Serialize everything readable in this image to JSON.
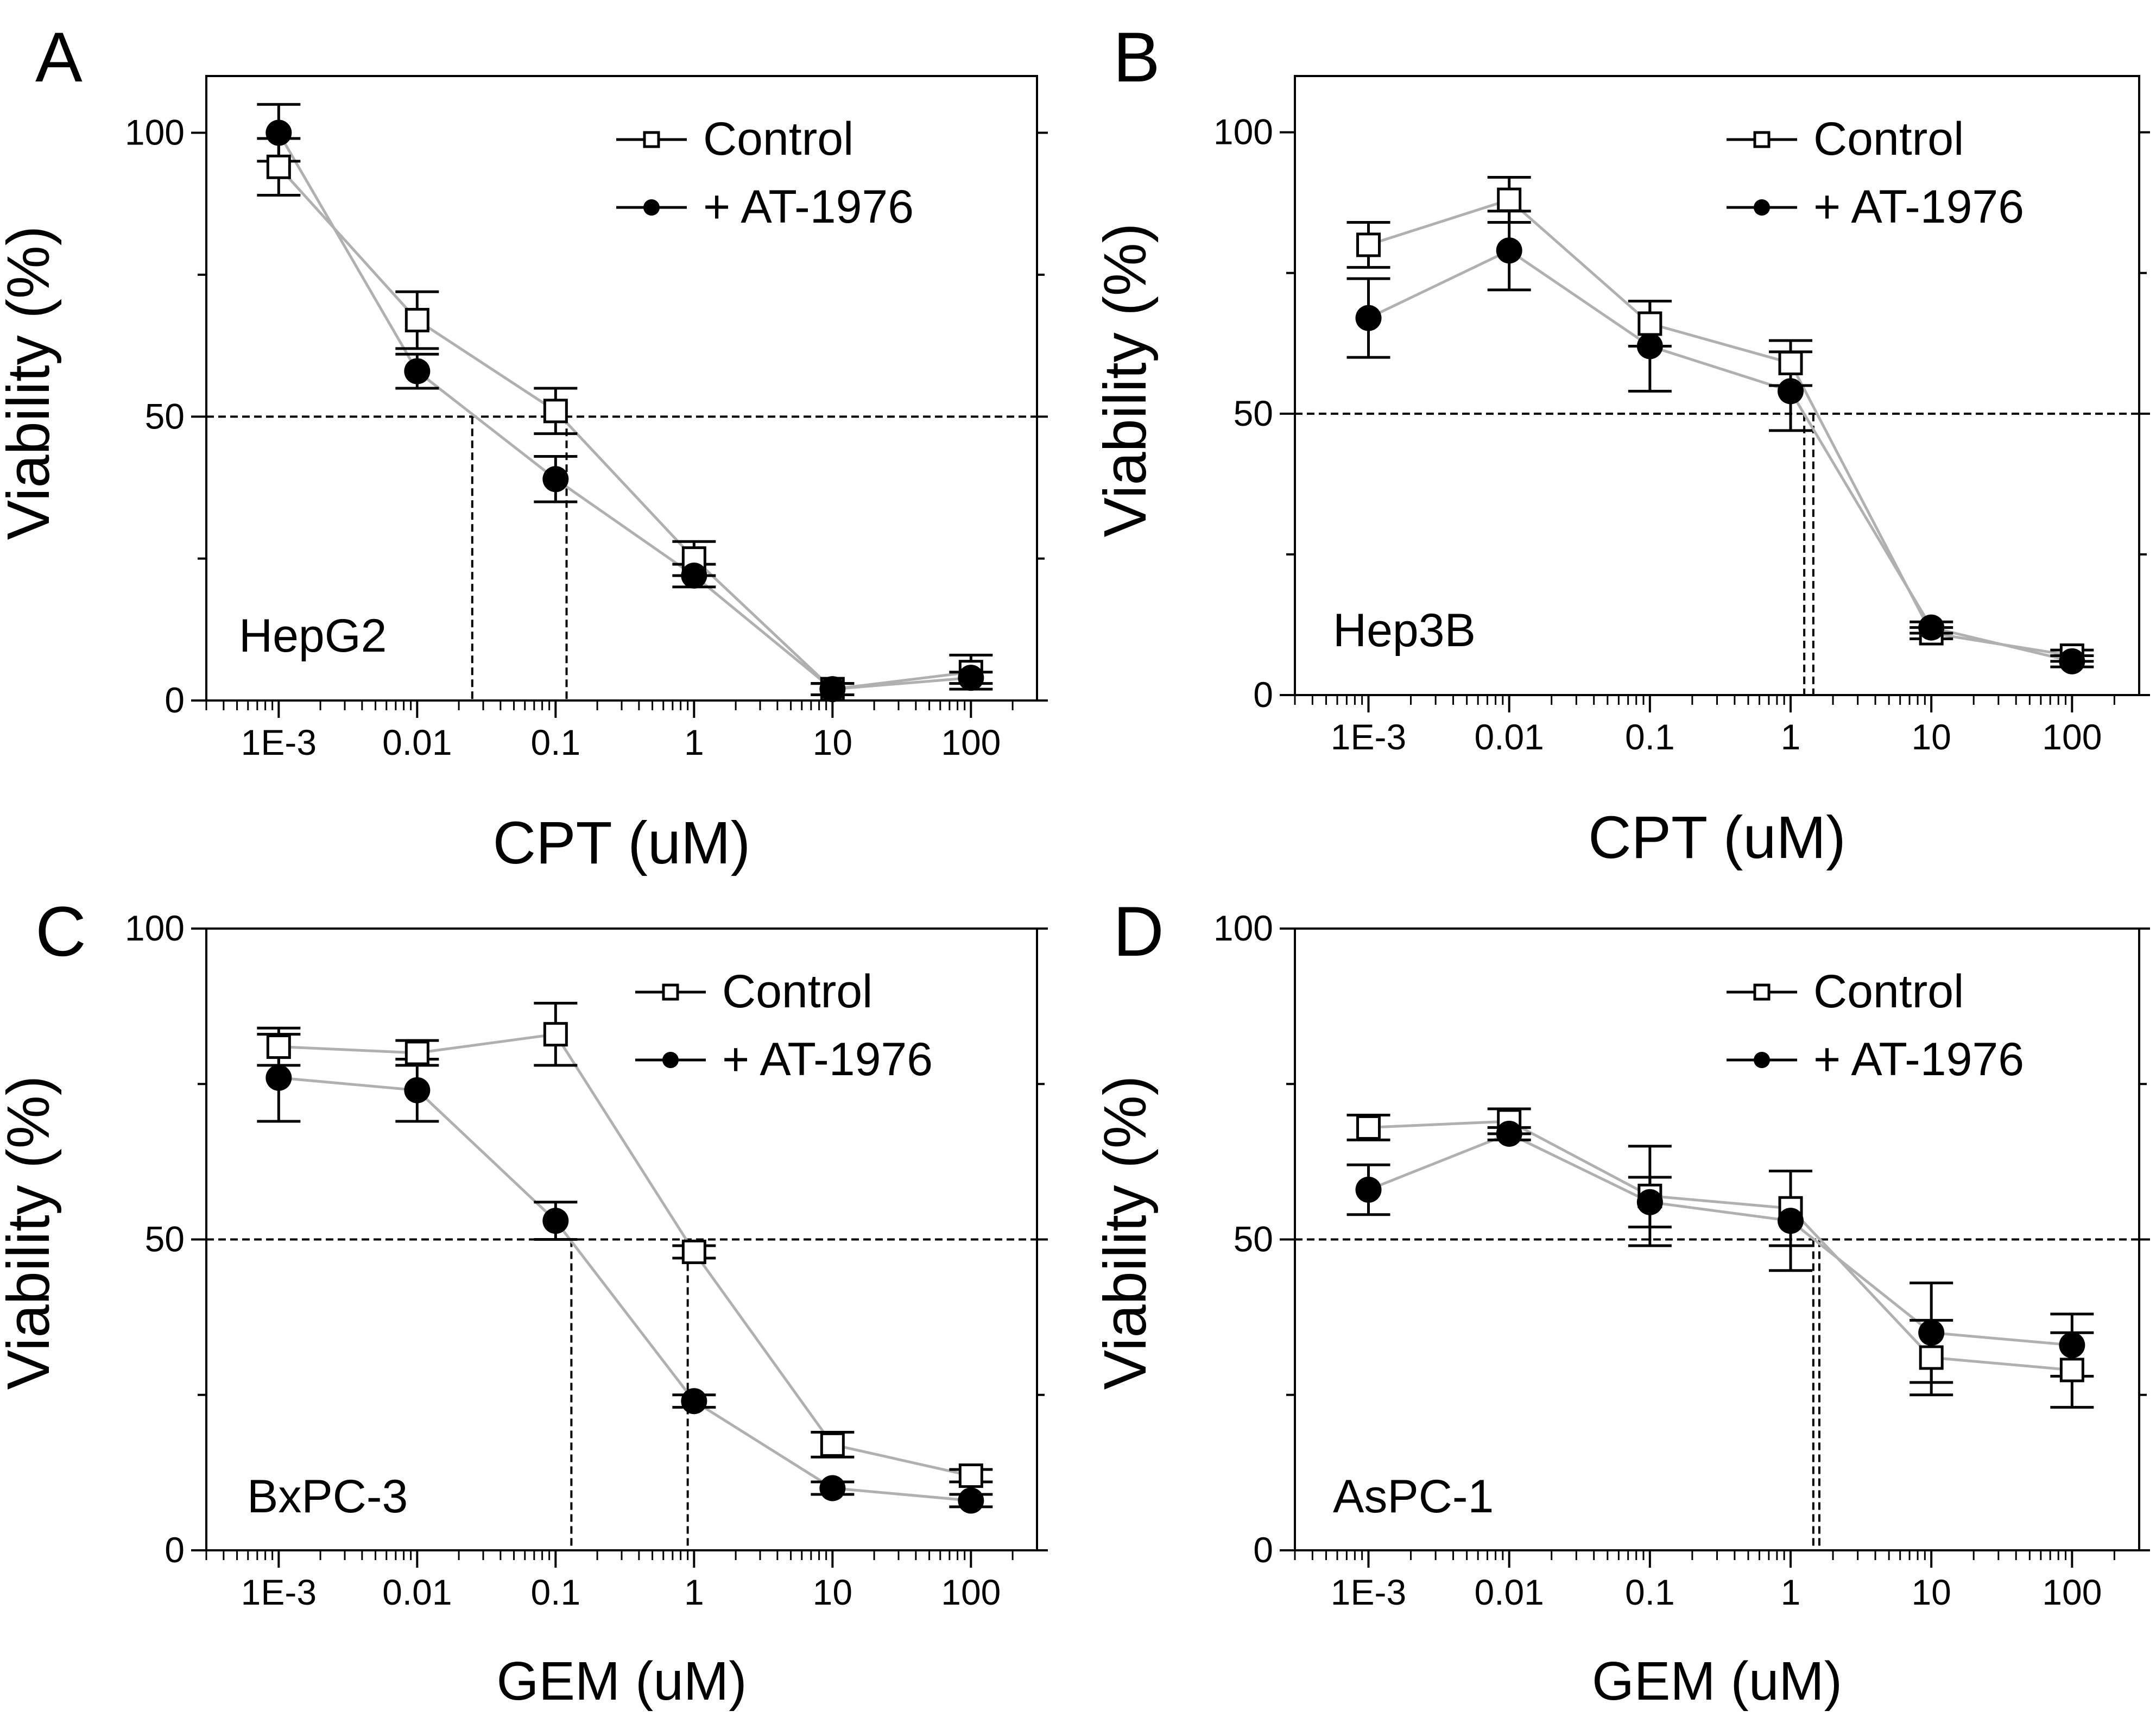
{
  "figure": {
    "series_colors": {
      "control": "#ffffff",
      "treated": "#000000",
      "line": "#b0b0b0",
      "axis": "#000000"
    }
  },
  "chart_data": [
    {
      "type": "scatter",
      "panel": "A",
      "cell_line": "HepG2",
      "xlabel": "CPT (uM)",
      "ylabel": "Viability (%)",
      "x_scale": "log",
      "xlim": [
        0.0003,
        300
      ],
      "ylim": [
        0,
        110
      ],
      "xticks": [
        0.001,
        0.01,
        0.1,
        1,
        10,
        100
      ],
      "xtick_labels": [
        "1E-3",
        "0.01",
        "0.1",
        "1",
        "10",
        "100"
      ],
      "yticks": [
        0,
        50,
        100
      ],
      "ytick_labels": [
        "0",
        "50",
        "100"
      ],
      "x": [
        0.001,
        0.01,
        0.1,
        1,
        10,
        100
      ],
      "reference_line_y": 50,
      "ic50_markers": [
        0.025,
        0.12
      ],
      "legend_position": "top-right",
      "series": [
        {
          "name": "Control",
          "marker": "open-square",
          "values": [
            94,
            67,
            51,
            25,
            2,
            5
          ],
          "errors": [
            5,
            5,
            4,
            3,
            1,
            3
          ]
        },
        {
          "name": "+ AT-1976",
          "marker": "filled-circle",
          "values": [
            100,
            58,
            39,
            22,
            2,
            4
          ],
          "errors": [
            5,
            3,
            4,
            2,
            1,
            1
          ]
        }
      ]
    },
    {
      "type": "scatter",
      "panel": "B",
      "cell_line": "Hep3B",
      "xlabel": "CPT (uM)",
      "ylabel": "Viability (%)",
      "x_scale": "log",
      "xlim": [
        0.0003,
        300
      ],
      "ylim": [
        0,
        110
      ],
      "xticks": [
        0.001,
        0.01,
        0.1,
        1,
        10,
        100
      ],
      "xtick_labels": [
        "1E-3",
        "0.01",
        "0.1",
        "1",
        "10",
        "100"
      ],
      "yticks": [
        0,
        50,
        100
      ],
      "ytick_labels": [
        "0",
        "50",
        "100"
      ],
      "x": [
        0.001,
        0.01,
        0.1,
        1,
        10,
        100
      ],
      "reference_line_y": 50,
      "ic50_markers": [
        1.25,
        1.45
      ],
      "legend_position": "top-right",
      "series": [
        {
          "name": "Control",
          "marker": "open-square",
          "values": [
            80,
            88,
            66,
            59,
            11,
            7
          ],
          "errors": [
            4,
            4,
            4,
            4,
            1,
            1
          ]
        },
        {
          "name": "+ AT-1976",
          "marker": "filled-circle",
          "values": [
            67,
            79,
            62,
            54,
            12,
            6
          ],
          "errors": [
            7,
            7,
            8,
            7,
            1,
            1
          ]
        }
      ]
    },
    {
      "type": "scatter",
      "panel": "C",
      "cell_line": "BxPC-3",
      "xlabel": "GEM (uM)",
      "ylabel": "Viability (%)",
      "x_scale": "log",
      "xlim": [
        0.0003,
        300
      ],
      "ylim": [
        0,
        100
      ],
      "xticks": [
        0.001,
        0.01,
        0.1,
        1,
        10,
        100
      ],
      "xtick_labels": [
        "1E-3",
        "0.01",
        "0.1",
        "1",
        "10",
        "100"
      ],
      "yticks": [
        0,
        50,
        100
      ],
      "ytick_labels": [
        "0",
        "50",
        "100"
      ],
      "x": [
        0.001,
        0.01,
        0.1,
        1,
        10,
        100
      ],
      "reference_line_y": 50,
      "ic50_markers": [
        0.13,
        0.9
      ],
      "legend_position": "top-right",
      "series": [
        {
          "name": "Control",
          "marker": "open-square",
          "values": [
            81,
            80,
            83,
            48,
            17,
            12
          ],
          "errors": [
            3,
            2,
            5,
            1,
            2,
            1
          ]
        },
        {
          "name": "+ AT-1976",
          "marker": "filled-circle",
          "values": [
            76,
            74,
            53,
            24,
            10,
            8
          ],
          "errors": [
            7,
            5,
            3,
            1,
            1,
            1
          ]
        }
      ]
    },
    {
      "type": "scatter",
      "panel": "D",
      "cell_line": "AsPC-1",
      "xlabel": "GEM (uM)",
      "ylabel": "Viability (%)",
      "x_scale": "log",
      "xlim": [
        0.0003,
        300
      ],
      "ylim": [
        0,
        100
      ],
      "xticks": [
        0.001,
        0.01,
        0.1,
        1,
        10,
        100
      ],
      "xtick_labels": [
        "1E-3",
        "0.01",
        "0.1",
        "1",
        "10",
        "100"
      ],
      "yticks": [
        0,
        50,
        100
      ],
      "ytick_labels": [
        "0",
        "50",
        "100"
      ],
      "x": [
        0.001,
        0.01,
        0.1,
        1,
        10,
        100
      ],
      "reference_line_y": 50,
      "ic50_markers": [
        1.45,
        1.6
      ],
      "legend_position": "top-right",
      "series": [
        {
          "name": "Control",
          "marker": "open-square",
          "values": [
            68,
            69,
            57,
            55,
            31,
            29
          ],
          "errors": [
            2,
            2,
            8,
            6,
            6,
            6
          ]
        },
        {
          "name": "+ AT-1976",
          "marker": "filled-circle",
          "values": [
            58,
            67,
            56,
            53,
            35,
            33
          ],
          "errors": [
            4,
            1,
            4,
            8,
            8,
            5
          ]
        }
      ]
    }
  ]
}
